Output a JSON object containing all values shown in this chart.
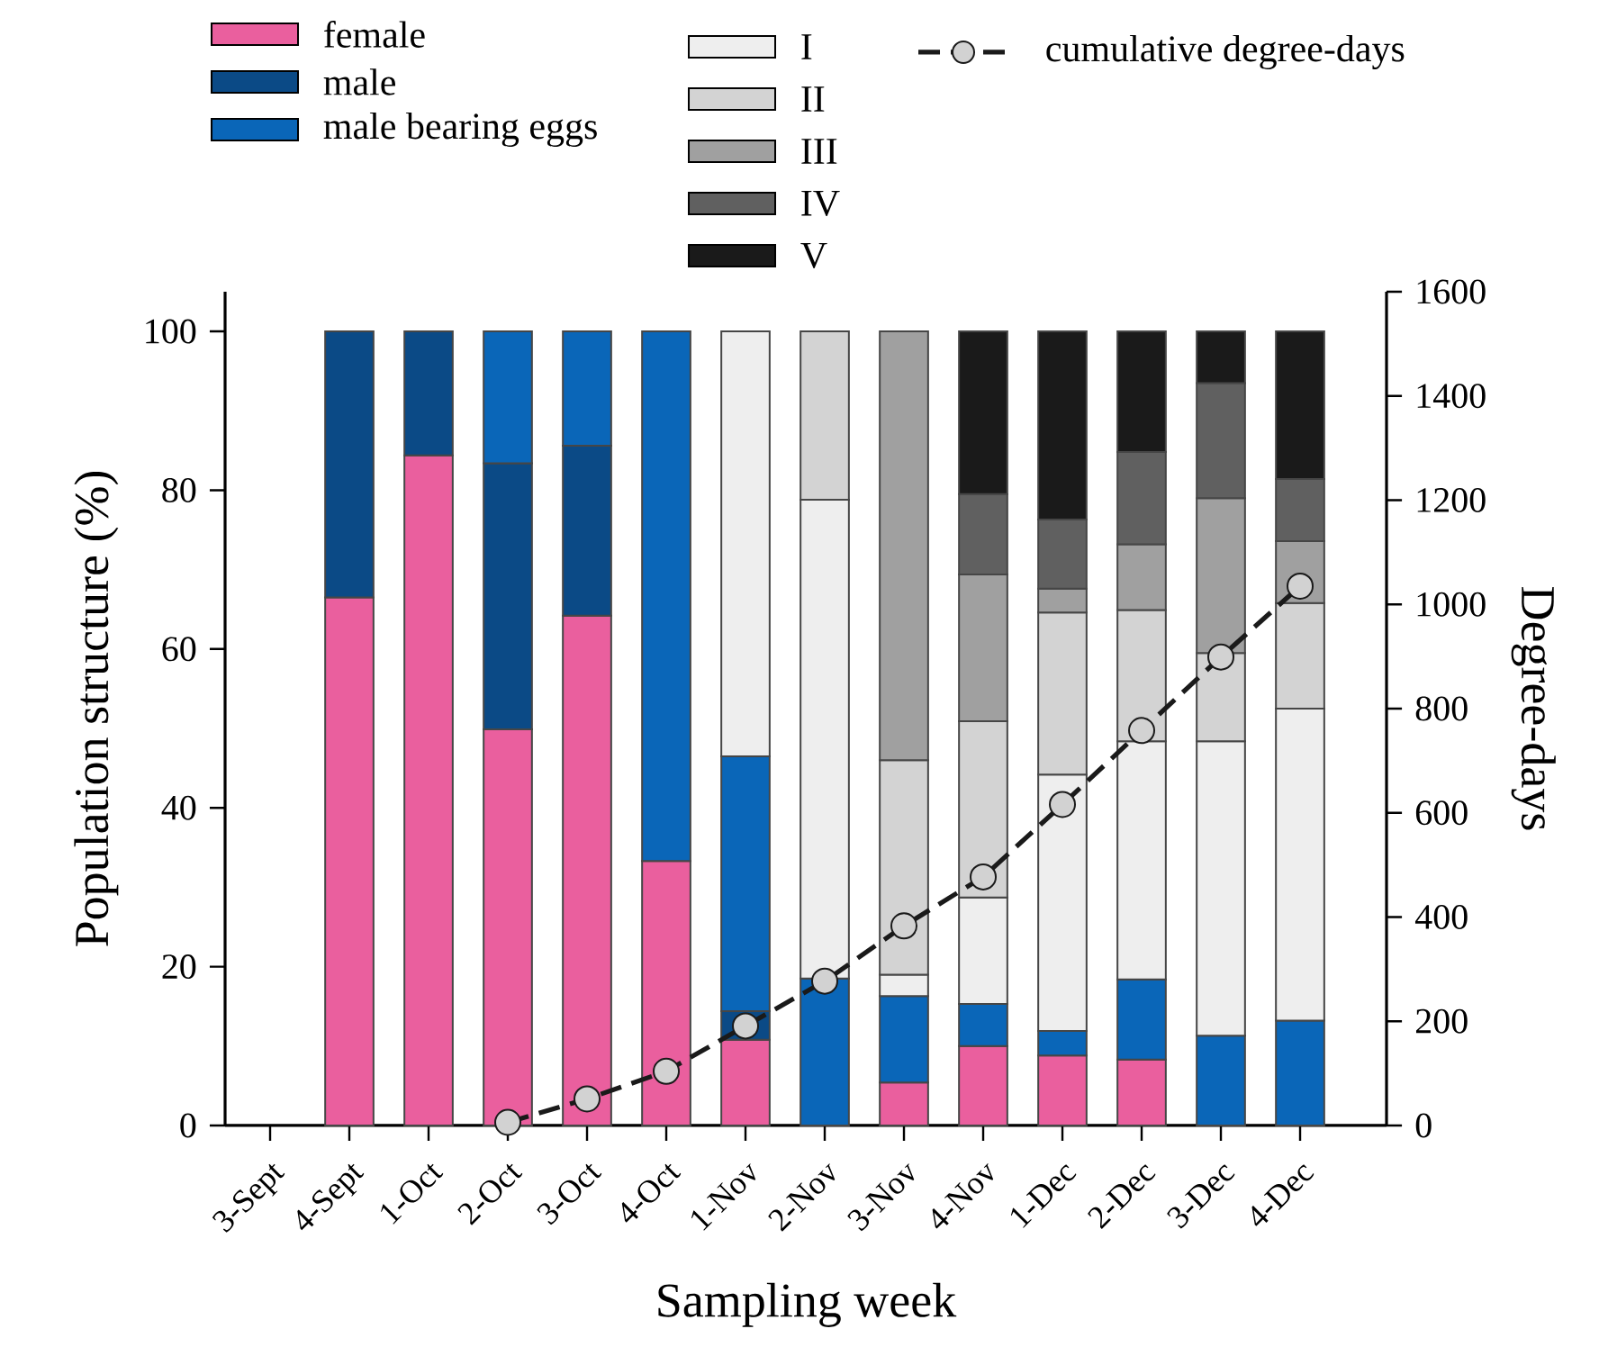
{
  "chart_data": {
    "type": "bar",
    "stacked": true,
    "xlabel": "Sampling week",
    "ylabel": "Population structure (%)",
    "y2label": "Degree-days",
    "categories": [
      "3-Sept",
      "4-Sept",
      "1-Oct",
      "2-Oct",
      "3-Oct",
      "4-Oct",
      "1-Nov",
      "2-Nov",
      "3-Nov",
      "4-Nov",
      "1-Dec",
      "2-Dec",
      "3-Dec",
      "4-Dec"
    ],
    "ylim": [
      0,
      105
    ],
    "yticks": [
      0,
      20,
      40,
      60,
      80,
      100
    ],
    "y2lim": [
      0,
      1600
    ],
    "y2ticks": [
      0,
      200,
      400,
      600,
      800,
      1000,
      1200,
      1400,
      1600
    ],
    "legend": "top",
    "series": [
      {
        "name": "female",
        "color": "#ea5f9e",
        "values": [
          null,
          66.5,
          84.4,
          49.9,
          64.2,
          33.3,
          10.8,
          null,
          5.4,
          10.0,
          8.8,
          8.3,
          null,
          null
        ]
      },
      {
        "name": "male",
        "color": "#0b4a86",
        "values": [
          null,
          33.5,
          15.6,
          33.5,
          21.4,
          null,
          3.6,
          null,
          null,
          null,
          null,
          null,
          null,
          null
        ]
      },
      {
        "name": "male bearing eggs",
        "color": "#0a66b8",
        "values": [
          null,
          null,
          null,
          16.6,
          14.4,
          66.7,
          32.1,
          18.5,
          10.9,
          5.3,
          3.1,
          10.1,
          11.3,
          13.2
        ]
      },
      {
        "name": "I",
        "color": "#eeeeee",
        "values": [
          null,
          null,
          null,
          null,
          null,
          null,
          53.5,
          60.3,
          2.7,
          13.4,
          32.3,
          30.0,
          37.1,
          39.3
        ]
      },
      {
        "name": "II",
        "color": "#d3d3d3",
        "values": [
          null,
          null,
          null,
          null,
          null,
          null,
          null,
          21.2,
          27.0,
          22.2,
          20.4,
          16.5,
          11.1,
          13.3
        ]
      },
      {
        "name": "III",
        "color": "#a0a0a0",
        "values": [
          null,
          null,
          null,
          null,
          null,
          null,
          null,
          null,
          54.0,
          18.5,
          3.0,
          8.3,
          19.5,
          7.8
        ]
      },
      {
        "name": "IV",
        "color": "#606060",
        "values": [
          null,
          null,
          null,
          null,
          null,
          null,
          null,
          null,
          null,
          10.1,
          8.7,
          11.6,
          14.5,
          7.8
        ]
      },
      {
        "name": "V",
        "color": "#1a1a1a",
        "values": [
          null,
          null,
          null,
          null,
          null,
          null,
          null,
          null,
          null,
          20.5,
          23.7,
          15.2,
          6.5,
          18.6
        ]
      },
      {
        "name": "cumulative degree-days",
        "type": "line",
        "axis": "y2",
        "color": "#1a1a1a",
        "marker": "circle",
        "line_style": "dashed",
        "values": [
          null,
          null,
          null,
          6,
          51,
          104,
          191,
          277,
          383,
          477,
          616,
          758,
          899,
          1035
        ]
      }
    ]
  }
}
